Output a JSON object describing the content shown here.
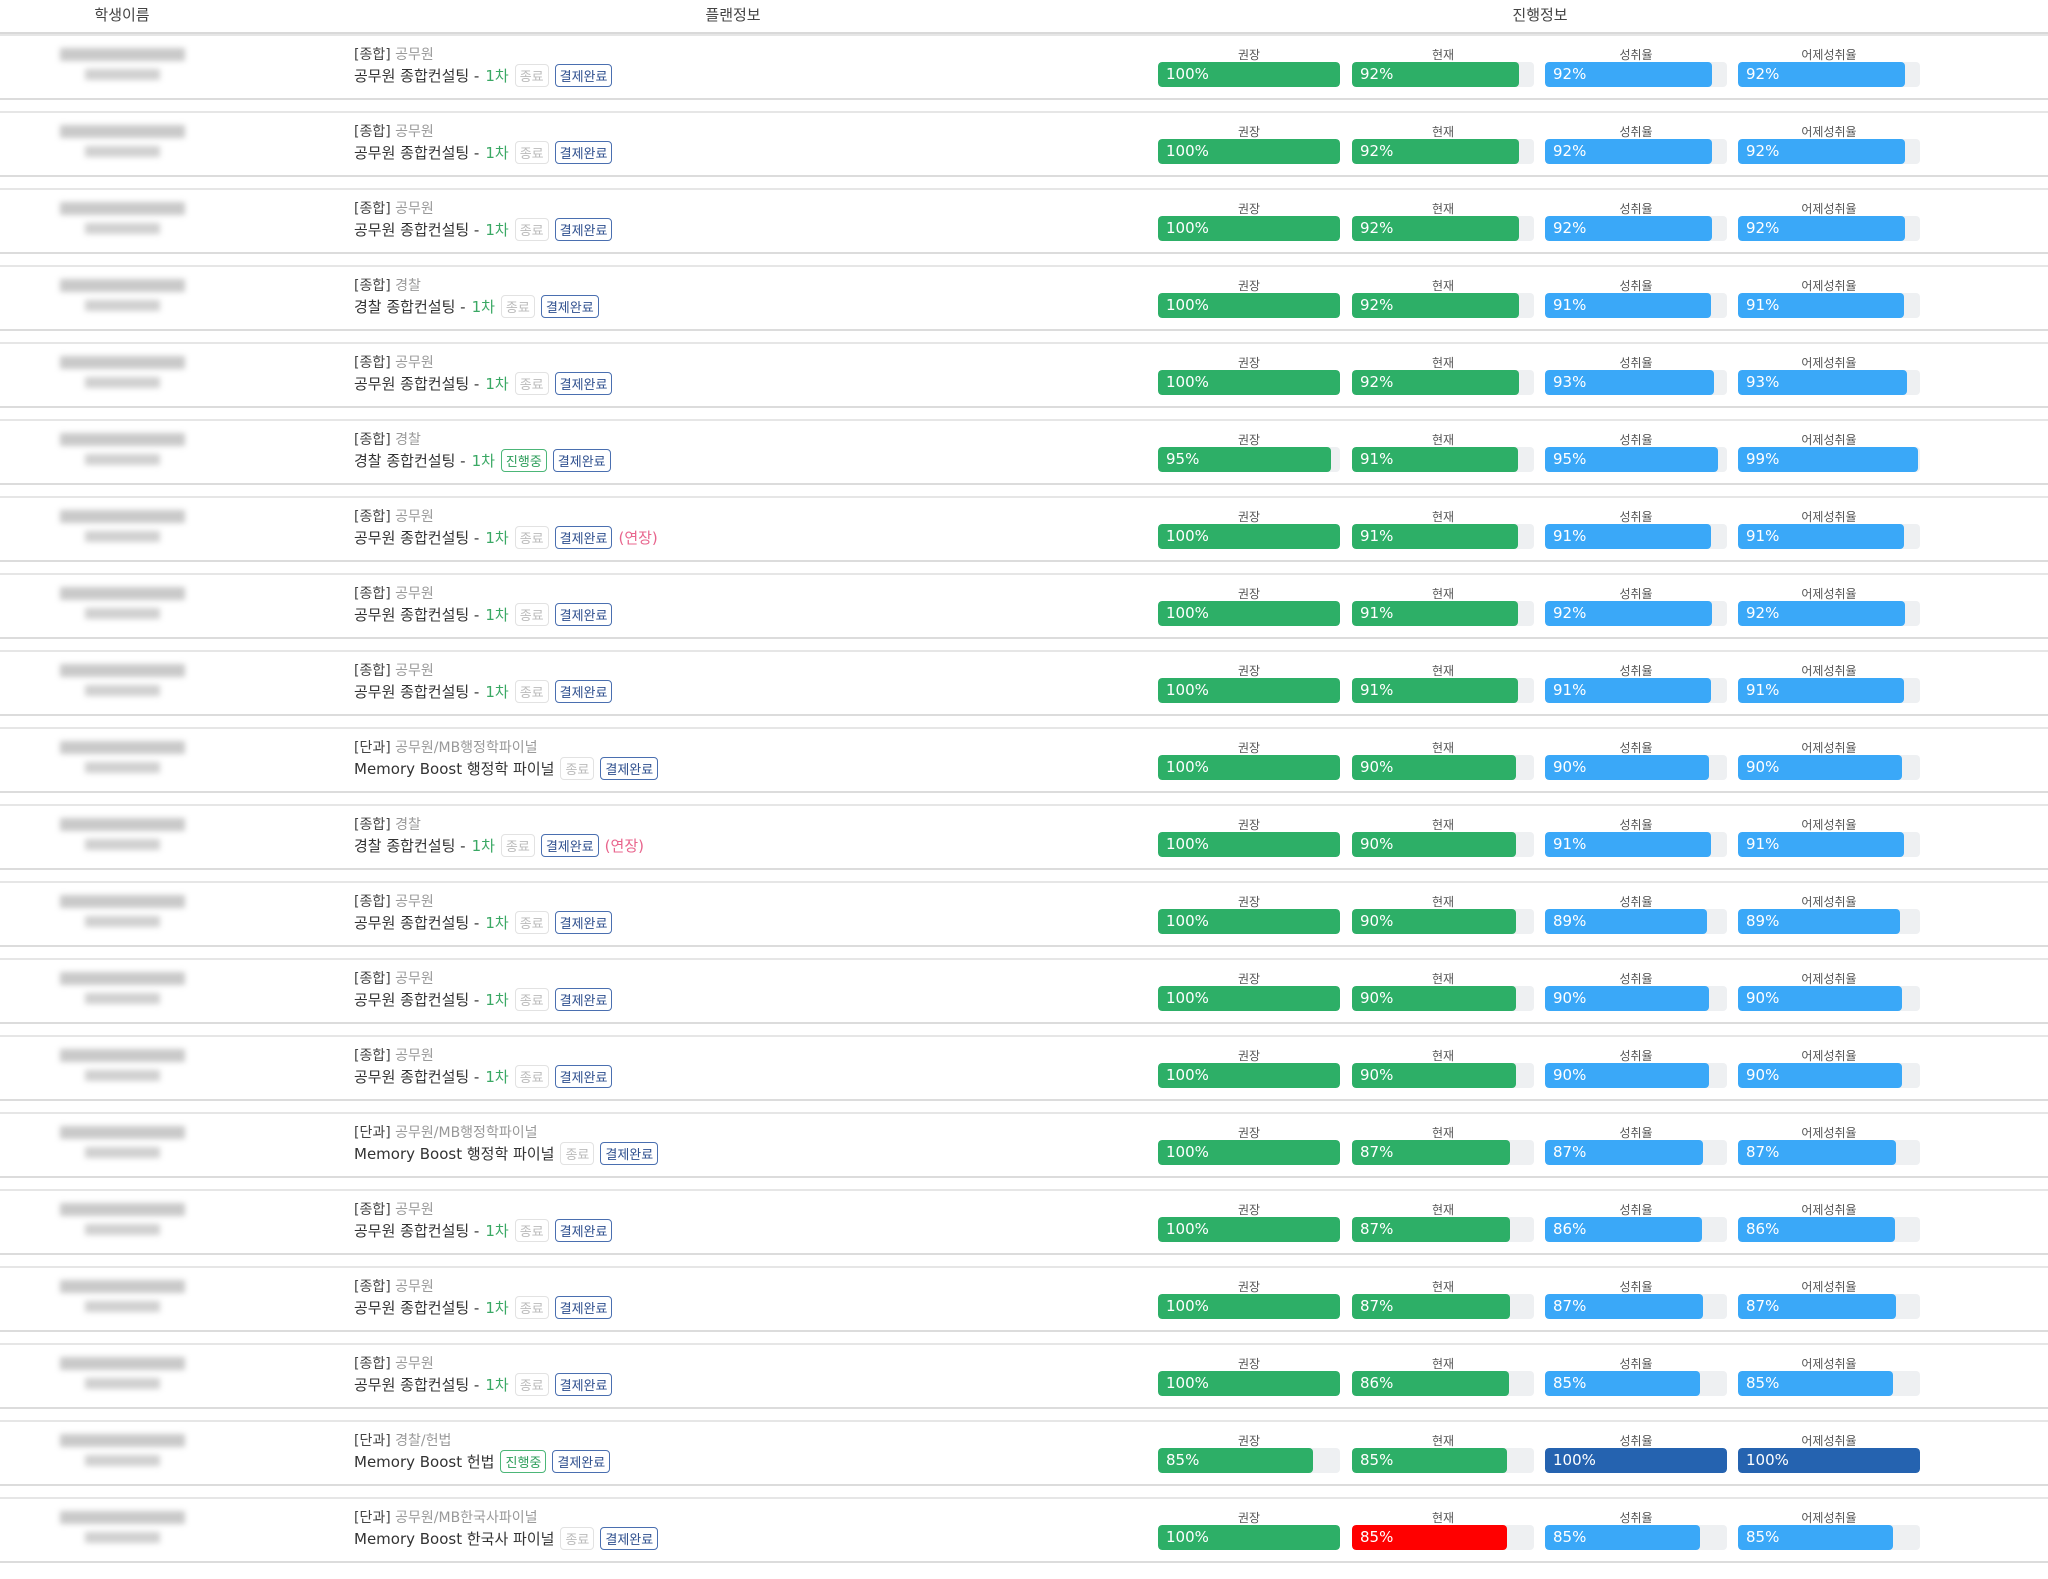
{
  "header": {
    "name": "학생이름",
    "plan": "플랜정보",
    "progress": "진행정보"
  },
  "bar_labels": [
    "권장",
    "현재",
    "성취율",
    "어제성취율"
  ],
  "colors": {
    "green": "#2daf67",
    "blue": "#3aa8f8",
    "dark_blue": "#2563b0",
    "red": "#ff0000",
    "track": "#eef0f2"
  },
  "rows": [
    {
      "tag": "[종합]",
      "cat": "공무원",
      "title": "공무원 종합컨설팅 -",
      "round": "1차",
      "state": "종료",
      "paid": "결제완료",
      "ext": "",
      "bars": [
        [
          100,
          "#2daf67"
        ],
        [
          92,
          "#2daf67"
        ],
        [
          92,
          "#3aa8f8"
        ],
        [
          92,
          "#3aa8f8"
        ]
      ]
    },
    {
      "tag": "[종합]",
      "cat": "공무원",
      "title": "공무원 종합컨설팅 -",
      "round": "1차",
      "state": "종료",
      "paid": "결제완료",
      "ext": "",
      "bars": [
        [
          100,
          "#2daf67"
        ],
        [
          92,
          "#2daf67"
        ],
        [
          92,
          "#3aa8f8"
        ],
        [
          92,
          "#3aa8f8"
        ]
      ]
    },
    {
      "tag": "[종합]",
      "cat": "공무원",
      "title": "공무원 종합컨설팅 -",
      "round": "1차",
      "state": "종료",
      "paid": "결제완료",
      "ext": "",
      "bars": [
        [
          100,
          "#2daf67"
        ],
        [
          92,
          "#2daf67"
        ],
        [
          92,
          "#3aa8f8"
        ],
        [
          92,
          "#3aa8f8"
        ]
      ]
    },
    {
      "tag": "[종합]",
      "cat": "경찰",
      "title": "경찰 종합컨설팅 -",
      "round": "1차",
      "state": "종료",
      "paid": "결제완료",
      "ext": "",
      "bars": [
        [
          100,
          "#2daf67"
        ],
        [
          92,
          "#2daf67"
        ],
        [
          91,
          "#3aa8f8"
        ],
        [
          91,
          "#3aa8f8"
        ]
      ]
    },
    {
      "tag": "[종합]",
      "cat": "공무원",
      "title": "공무원 종합컨설팅 -",
      "round": "1차",
      "state": "종료",
      "paid": "결제완료",
      "ext": "",
      "bars": [
        [
          100,
          "#2daf67"
        ],
        [
          92,
          "#2daf67"
        ],
        [
          93,
          "#3aa8f8"
        ],
        [
          93,
          "#3aa8f8"
        ]
      ]
    },
    {
      "tag": "[종합]",
      "cat": "경찰",
      "title": "경찰 종합컨설팅 -",
      "round": "1차",
      "state": "진행중",
      "paid": "결제완료",
      "ext": "",
      "bars": [
        [
          95,
          "#2daf67"
        ],
        [
          91,
          "#2daf67"
        ],
        [
          95,
          "#3aa8f8"
        ],
        [
          99,
          "#3aa8f8"
        ]
      ]
    },
    {
      "tag": "[종합]",
      "cat": "공무원",
      "title": "공무원 종합컨설팅 -",
      "round": "1차",
      "state": "종료",
      "paid": "결제완료",
      "ext": "(연장)",
      "bars": [
        [
          100,
          "#2daf67"
        ],
        [
          91,
          "#2daf67"
        ],
        [
          91,
          "#3aa8f8"
        ],
        [
          91,
          "#3aa8f8"
        ]
      ]
    },
    {
      "tag": "[종합]",
      "cat": "공무원",
      "title": "공무원 종합컨설팅 -",
      "round": "1차",
      "state": "종료",
      "paid": "결제완료",
      "ext": "",
      "bars": [
        [
          100,
          "#2daf67"
        ],
        [
          91,
          "#2daf67"
        ],
        [
          92,
          "#3aa8f8"
        ],
        [
          92,
          "#3aa8f8"
        ]
      ]
    },
    {
      "tag": "[종합]",
      "cat": "공무원",
      "title": "공무원 종합컨설팅 -",
      "round": "1차",
      "state": "종료",
      "paid": "결제완료",
      "ext": "",
      "bars": [
        [
          100,
          "#2daf67"
        ],
        [
          91,
          "#2daf67"
        ],
        [
          91,
          "#3aa8f8"
        ],
        [
          91,
          "#3aa8f8"
        ]
      ]
    },
    {
      "tag": "[단과]",
      "cat": "공무원/MB행정학파이널",
      "title": "Memory Boost 행정학 파이널",
      "round": "",
      "state": "종료",
      "paid": "결제완료",
      "ext": "",
      "bars": [
        [
          100,
          "#2daf67"
        ],
        [
          90,
          "#2daf67"
        ],
        [
          90,
          "#3aa8f8"
        ],
        [
          90,
          "#3aa8f8"
        ]
      ]
    },
    {
      "tag": "[종합]",
      "cat": "경찰",
      "title": "경찰 종합컨설팅 -",
      "round": "1차",
      "state": "종료",
      "paid": "결제완료",
      "ext": "(연장)",
      "bars": [
        [
          100,
          "#2daf67"
        ],
        [
          90,
          "#2daf67"
        ],
        [
          91,
          "#3aa8f8"
        ],
        [
          91,
          "#3aa8f8"
        ]
      ]
    },
    {
      "tag": "[종합]",
      "cat": "공무원",
      "title": "공무원 종합컨설팅 -",
      "round": "1차",
      "state": "종료",
      "paid": "결제완료",
      "ext": "",
      "bars": [
        [
          100,
          "#2daf67"
        ],
        [
          90,
          "#2daf67"
        ],
        [
          89,
          "#3aa8f8"
        ],
        [
          89,
          "#3aa8f8"
        ]
      ]
    },
    {
      "tag": "[종합]",
      "cat": "공무원",
      "title": "공무원 종합컨설팅 -",
      "round": "1차",
      "state": "종료",
      "paid": "결제완료",
      "ext": "",
      "bars": [
        [
          100,
          "#2daf67"
        ],
        [
          90,
          "#2daf67"
        ],
        [
          90,
          "#3aa8f8"
        ],
        [
          90,
          "#3aa8f8"
        ]
      ]
    },
    {
      "tag": "[종합]",
      "cat": "공무원",
      "title": "공무원 종합컨설팅 -",
      "round": "1차",
      "state": "종료",
      "paid": "결제완료",
      "ext": "",
      "bars": [
        [
          100,
          "#2daf67"
        ],
        [
          90,
          "#2daf67"
        ],
        [
          90,
          "#3aa8f8"
        ],
        [
          90,
          "#3aa8f8"
        ]
      ]
    },
    {
      "tag": "[단과]",
      "cat": "공무원/MB행정학파이널",
      "title": "Memory Boost 행정학 파이널",
      "round": "",
      "state": "종료",
      "paid": "결제완료",
      "ext": "",
      "bars": [
        [
          100,
          "#2daf67"
        ],
        [
          87,
          "#2daf67"
        ],
        [
          87,
          "#3aa8f8"
        ],
        [
          87,
          "#3aa8f8"
        ]
      ]
    },
    {
      "tag": "[종합]",
      "cat": "공무원",
      "title": "공무원 종합컨설팅 -",
      "round": "1차",
      "state": "종료",
      "paid": "결제완료",
      "ext": "",
      "bars": [
        [
          100,
          "#2daf67"
        ],
        [
          87,
          "#2daf67"
        ],
        [
          86,
          "#3aa8f8"
        ],
        [
          86,
          "#3aa8f8"
        ]
      ]
    },
    {
      "tag": "[종합]",
      "cat": "공무원",
      "title": "공무원 종합컨설팅 -",
      "round": "1차",
      "state": "종료",
      "paid": "결제완료",
      "ext": "",
      "bars": [
        [
          100,
          "#2daf67"
        ],
        [
          87,
          "#2daf67"
        ],
        [
          87,
          "#3aa8f8"
        ],
        [
          87,
          "#3aa8f8"
        ]
      ]
    },
    {
      "tag": "[종합]",
      "cat": "공무원",
      "title": "공무원 종합컨설팅 -",
      "round": "1차",
      "state": "종료",
      "paid": "결제완료",
      "ext": "",
      "bars": [
        [
          100,
          "#2daf67"
        ],
        [
          86,
          "#2daf67"
        ],
        [
          85,
          "#3aa8f8"
        ],
        [
          85,
          "#3aa8f8"
        ]
      ]
    },
    {
      "tag": "[단과]",
      "cat": "경찰/헌법",
      "title": "Memory Boost 헌법",
      "round": "",
      "state": "진행중",
      "paid": "결제완료",
      "ext": "",
      "bars": [
        [
          85,
          "#2daf67"
        ],
        [
          85,
          "#2daf67"
        ],
        [
          100,
          "#2563b0"
        ],
        [
          100,
          "#2563b0"
        ]
      ]
    },
    {
      "tag": "[단과]",
      "cat": "공무원/MB한국사파이널",
      "title": "Memory Boost 한국사 파이널",
      "round": "",
      "state": "종료",
      "paid": "결제완료",
      "ext": "",
      "bars": [
        [
          100,
          "#2daf67"
        ],
        [
          85,
          "#ff0000"
        ],
        [
          85,
          "#3aa8f8"
        ],
        [
          85,
          "#3aa8f8"
        ]
      ]
    }
  ]
}
